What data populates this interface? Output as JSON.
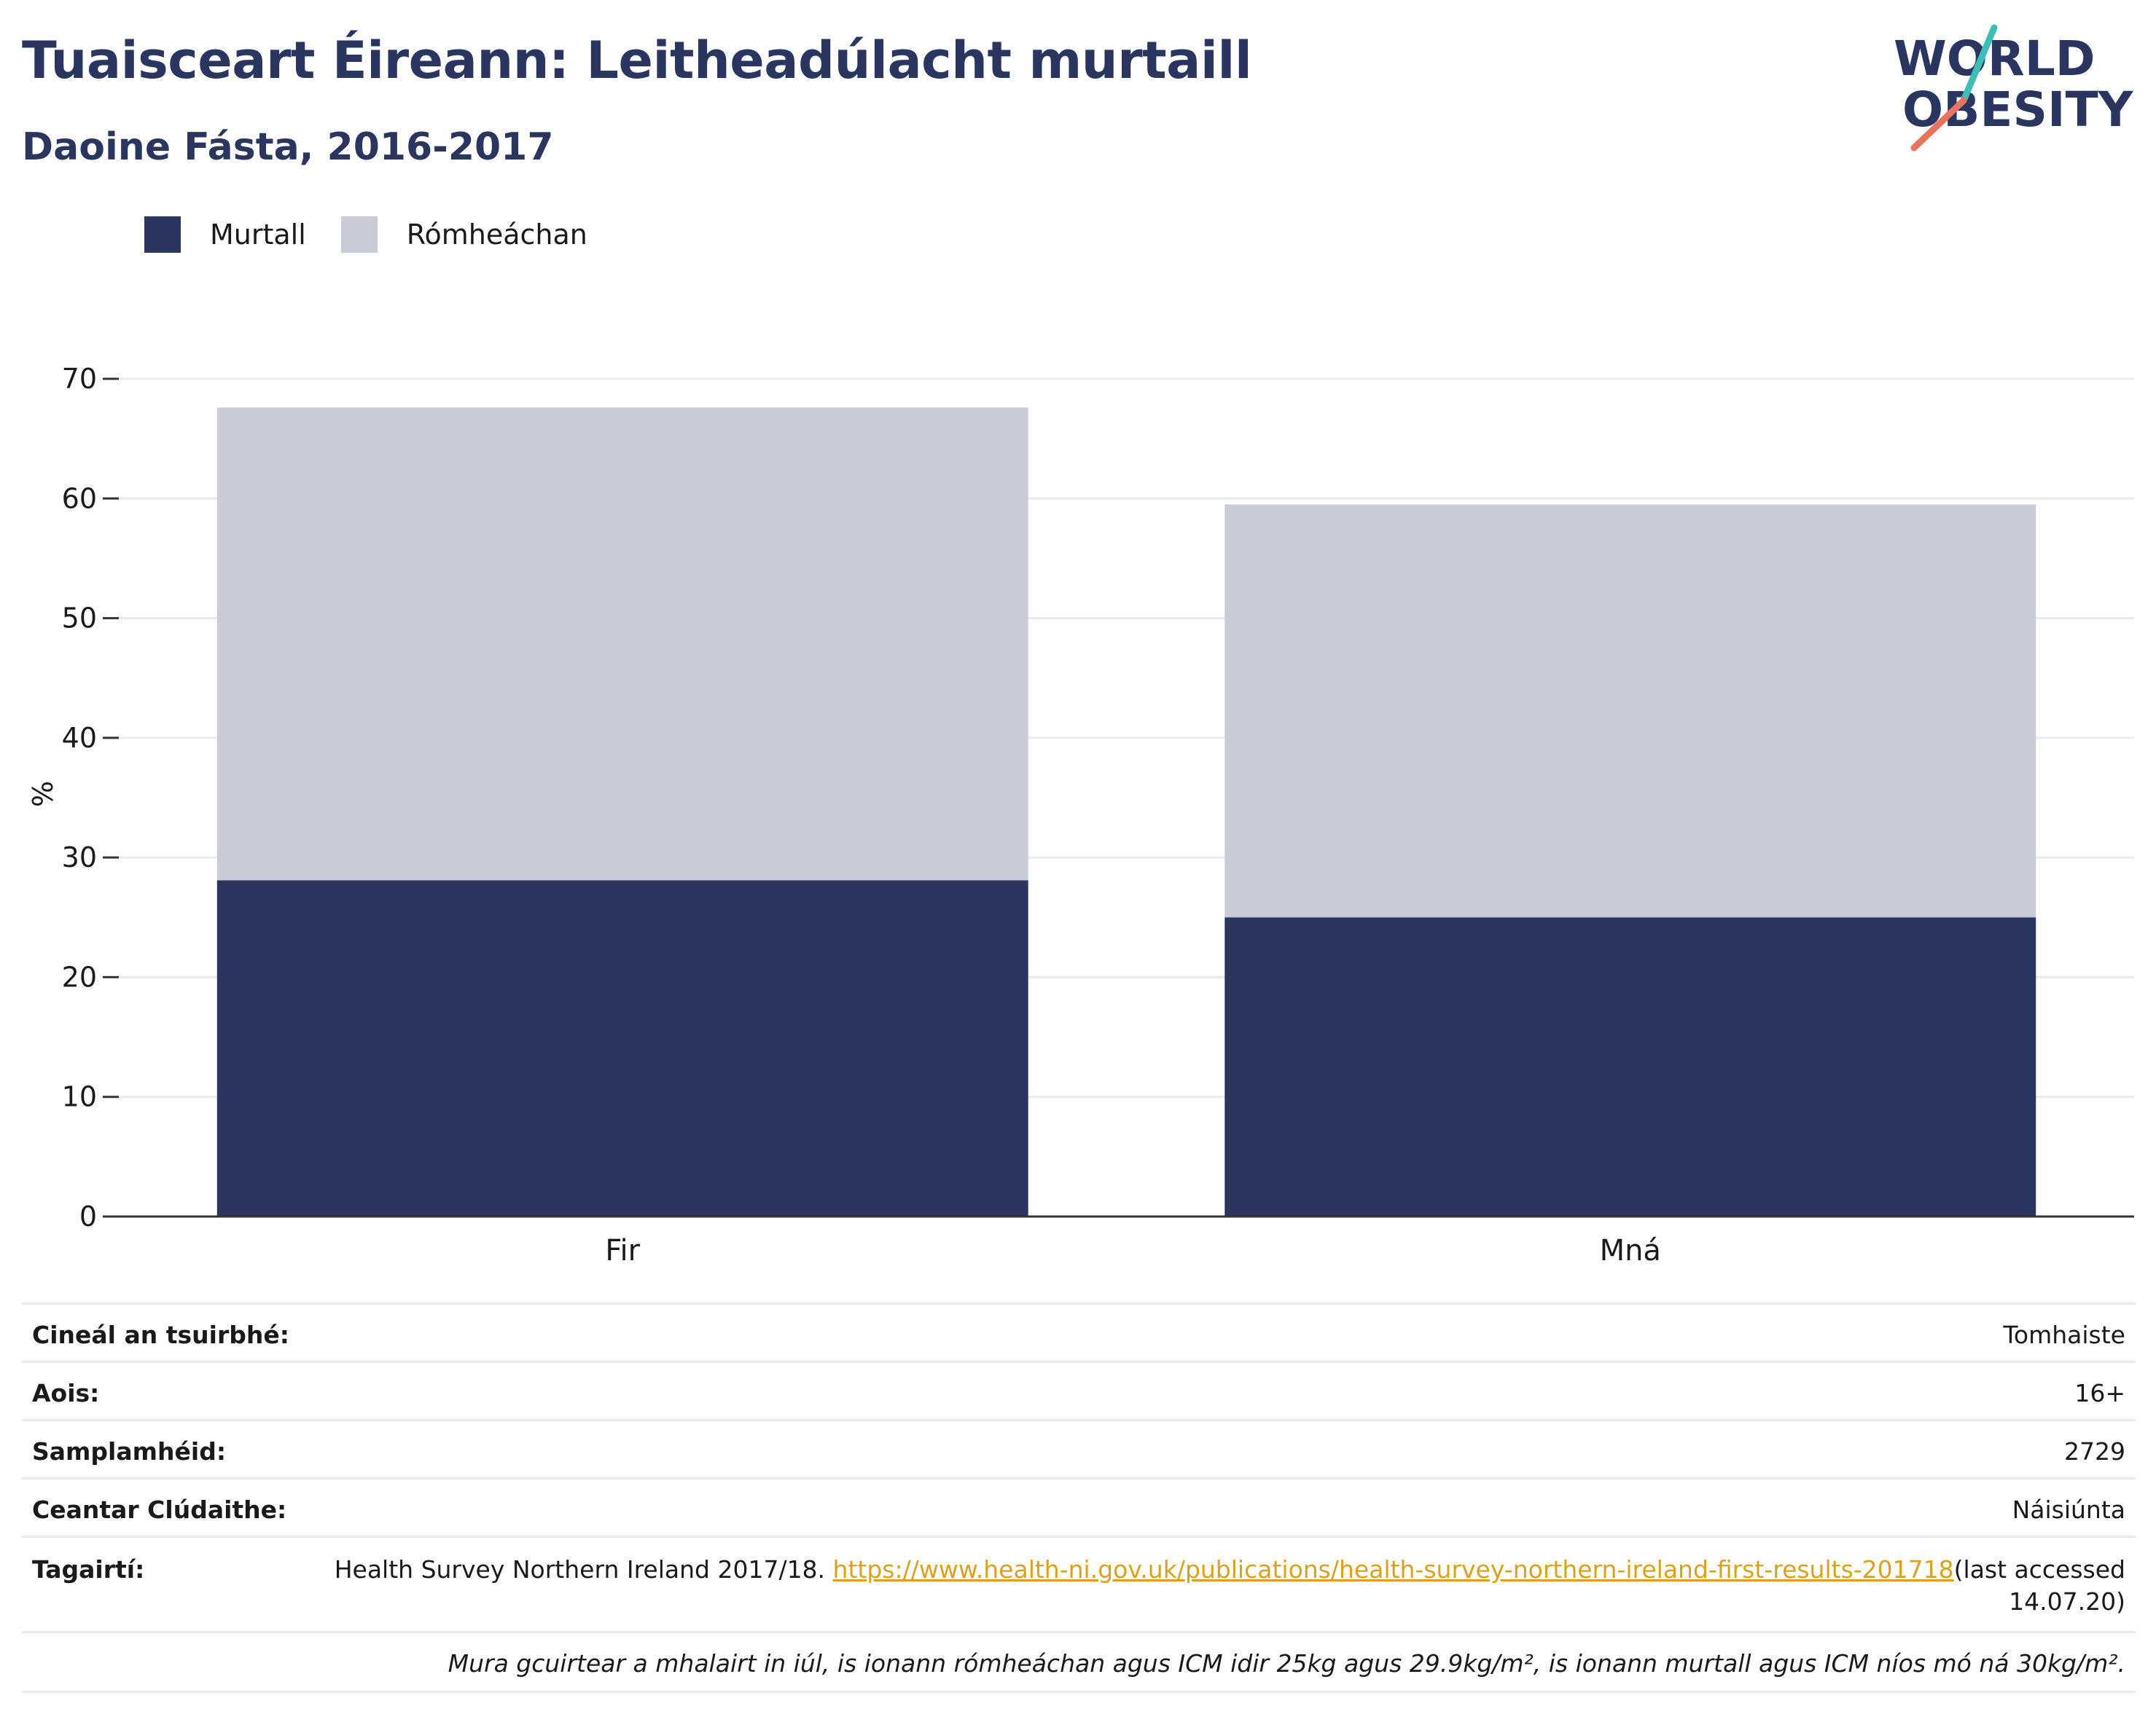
{
  "header": {
    "title": "Tuaisceart Éireann: Leitheadúlacht murtaill",
    "subtitle": "Daoine Fásta, 2016-2017"
  },
  "logo": {
    "line1": "WORLD",
    "line2": "OBESITY",
    "stroke_colors": [
      "#3dbfb8",
      "#e8745f"
    ]
  },
  "legend": [
    {
      "label": "Murtall",
      "color": "#2a365f"
    },
    {
      "label": "Rómheáchan",
      "color": "#c9ccd7"
    }
  ],
  "chart_data": {
    "type": "bar",
    "stacked": true,
    "categories": [
      "Fir",
      "Mná"
    ],
    "series": [
      {
        "name": "Murtall",
        "values": [
          28.1,
          25.0
        ],
        "color": "#2a365f"
      },
      {
        "name": "Rómheáchan",
        "values": [
          39.5,
          34.5
        ],
        "color": "#c9ccd7"
      }
    ],
    "ylabel": "%",
    "ylim": [
      0,
      70
    ],
    "yticks": [
      0,
      10,
      20,
      30,
      40,
      50,
      60,
      70
    ],
    "grid": true,
    "legend_position": "top-left"
  },
  "info": {
    "survey_type": {
      "label": "Cineál an tsuirbhé:",
      "value": "Tomhaiste"
    },
    "age": {
      "label": "Aois:",
      "value": "16+"
    },
    "sample_size": {
      "label": "Samplamhéid:",
      "value": "2729"
    },
    "coverage": {
      "label": "Ceantar Clúdaithe:",
      "value": "Náisiúnta"
    },
    "references": {
      "label": "Tagairtí:",
      "text": "Health Survey Northern Ireland 2017/18.",
      "link": "https://www.health-ni.gov.uk/publications/health-survey-northern-ireland-first-results-201718",
      "accessed": "(last accessed 14.07.20)"
    },
    "note": "Mura gcuirtear a mhalairt in iúl, is ionann rómheáchan agus ICM idir 25kg agus 29.9kg/m², is ionann murtall agus ICM níos mó ná 30kg/m²."
  }
}
